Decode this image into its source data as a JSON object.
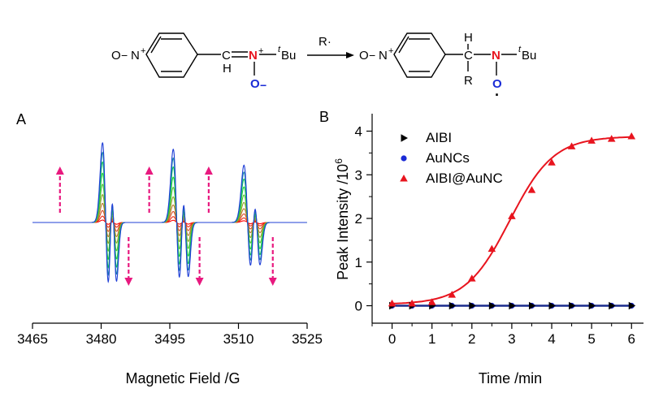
{
  "scheme": {
    "reactant": {
      "n_oxide_o": "O",
      "minus": "−",
      "n_oxide_n": "N",
      "plus": "+",
      "h": "H",
      "c": "C",
      "nitrone_n": "N",
      "nitrone_plus": "+",
      "t": "t",
      "bu": "Bu",
      "nitrone_o": "O",
      "nitrone_minus": "−"
    },
    "reagent": "R·",
    "product": {
      "n_oxide_o": "O",
      "minus": "−",
      "n_oxide_n": "N",
      "plus": "+",
      "h": "H",
      "c": "C",
      "r": "R",
      "nitroxide_n": "N",
      "t": "t",
      "bu": "Bu",
      "nitroxide_o": "O",
      "radical_dot": "·"
    }
  },
  "colors": {
    "nitrone": "#e8141e",
    "oxygen": "#1a2bd6",
    "arrow": "#e8197f",
    "aibi": "#000000",
    "aunc": "#1a2bd6",
    "aibi_aunc": "#e8141e",
    "fit_line": "#1a2b8c"
  },
  "chart_data": [
    {
      "panel": "A",
      "type": "line",
      "title": "",
      "xlabel": "Magnetic Field /G",
      "ylabel": "",
      "xlim": [
        3465,
        3525
      ],
      "xticks": [
        "3465",
        "3480",
        "3495",
        "3510",
        "3525"
      ],
      "line_centers": [
        3481,
        3496.5,
        3512
      ],
      "line_widths": [
        0.7,
        0.75,
        0.8
      ],
      "line_amplitudes": [
        1.0,
        0.92,
        0.72
      ],
      "spectrum_scale_factors": [
        0.03,
        0.08,
        0.15,
        0.24,
        0.35,
        0.48,
        0.62,
        0.76,
        0.88,
        1.0
      ],
      "spectrum_colors": [
        "#ff0000",
        "#ee2a15",
        "#d94b24",
        "#b8792c",
        "#8fa329",
        "#55c238",
        "#22d43c",
        "#14c45c",
        "#1b8aa8",
        "#1f3fd6"
      ]
    },
    {
      "panel": "B",
      "type": "scatter",
      "title": "",
      "xlabel": "Time /min",
      "ylabel": "Peak Intensity /10",
      "ylabel_exponent": "6",
      "xlim": [
        -0.5,
        6.3
      ],
      "ylim": [
        -0.4,
        4.4
      ],
      "xticks": [
        "0",
        "1",
        "2",
        "3",
        "4",
        "5",
        "6"
      ],
      "yticks": [
        "0",
        "1",
        "2",
        "3",
        "4"
      ],
      "legend": [
        "AIBI",
        "AuNCs",
        "AIBI@AuNC"
      ],
      "series": [
        {
          "name": "AIBI",
          "marker": "triangle-right",
          "x": [
            0,
            0.5,
            1,
            1.5,
            2,
            2.5,
            3,
            3.5,
            4,
            4.5,
            5,
            5.5,
            6
          ],
          "y": [
            0,
            0,
            0,
            0,
            0,
            0,
            0,
            0,
            0,
            0,
            0,
            0,
            0
          ]
        },
        {
          "name": "AuNCs",
          "marker": "circle",
          "x": [
            0,
            0.5,
            1,
            1.5,
            2,
            2.5,
            3,
            3.5,
            4,
            4.5,
            5,
            5.5,
            6
          ],
          "y": [
            0,
            0,
            0,
            0,
            0,
            0,
            0,
            0,
            0,
            0,
            0,
            0,
            0
          ]
        },
        {
          "name": "AIBI@AuNC",
          "marker": "triangle-up",
          "x": [
            0,
            0.5,
            1,
            1.5,
            2,
            2.5,
            3,
            3.5,
            4,
            4.5,
            5,
            5.5,
            6
          ],
          "y": [
            0.05,
            0.05,
            0.08,
            0.25,
            0.62,
            1.3,
            2.05,
            2.65,
            3.28,
            3.65,
            3.78,
            3.82,
            3.88
          ]
        }
      ],
      "fit": {
        "name": "AIBI@AuNC fit",
        "model": "sigmoid",
        "top": 3.88,
        "bottom": 0.03,
        "midpoint": 2.95,
        "slope": 0.55
      },
      "baseline_fit": {
        "name": "control fit",
        "value": 0
      }
    }
  ]
}
